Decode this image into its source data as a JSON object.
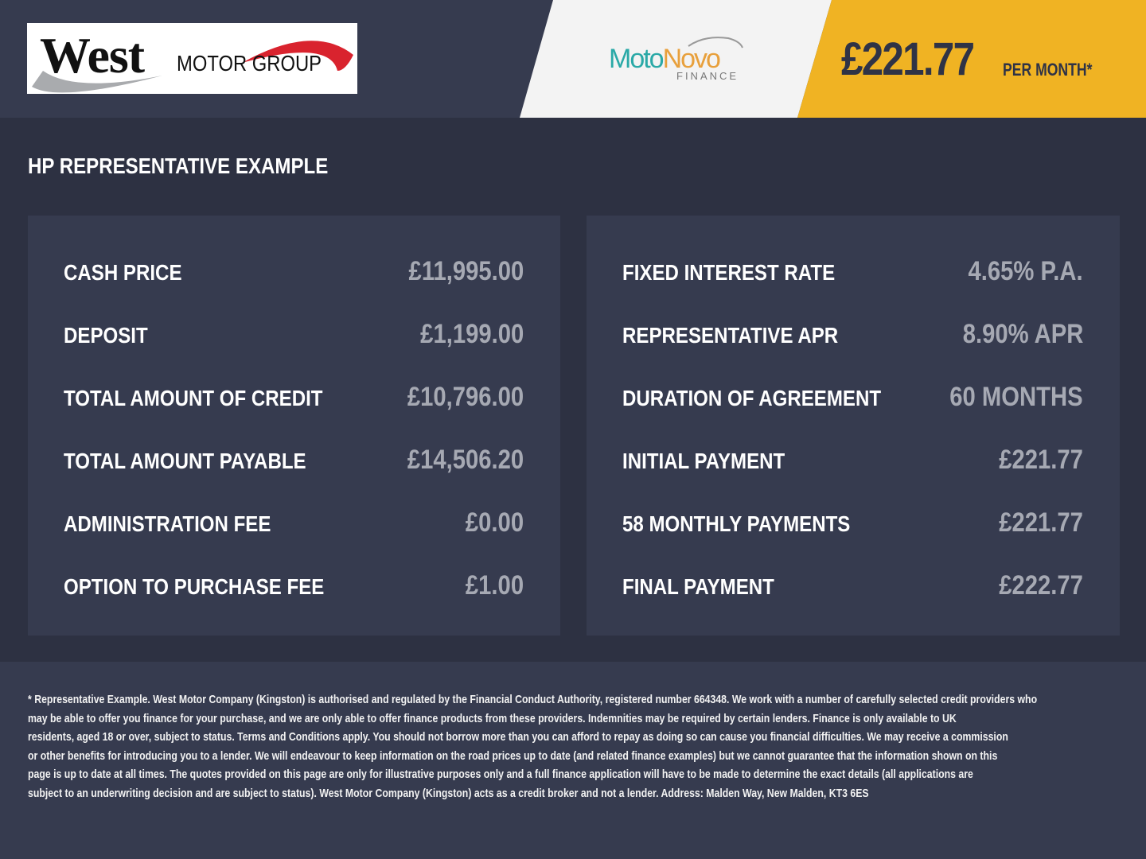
{
  "header": {
    "dealer_logo": "West MOTOR GROUP",
    "dealer_logo_main": "West",
    "dealer_logo_sub": "MOTOR GROUP",
    "finance_logo_moto": "Moto",
    "finance_logo_novo": "Novo",
    "finance_logo_sub": "FINANCE",
    "monthly_price": "£221.77",
    "per_month": "PER MONTH*"
  },
  "colors": {
    "accent_yellow": "#f0b323",
    "background": "#2d3142",
    "panel": "#363b4f",
    "moto_teal": "#2aa9a7",
    "novo_orange": "#e8a03c",
    "dealer_red": "#d9232e"
  },
  "section_title": "HP REPRESENTATIVE EXAMPLE",
  "left_panel": [
    {
      "label": "CASH PRICE",
      "value": "£11,995.00"
    },
    {
      "label": "DEPOSIT",
      "value": "£1,199.00"
    },
    {
      "label": "TOTAL AMOUNT OF CREDIT",
      "value": "£10,796.00"
    },
    {
      "label": "TOTAL AMOUNT PAYABLE",
      "value": "£14,506.20"
    },
    {
      "label": "ADMINISTRATION FEE",
      "value": "£0.00"
    },
    {
      "label": "OPTION TO PURCHASE FEE",
      "value": "£1.00"
    }
  ],
  "right_panel": [
    {
      "label": "FIXED INTEREST RATE",
      "value": "4.65% P.A."
    },
    {
      "label": "REPRESENTATIVE APR",
      "value": "8.90% APR"
    },
    {
      "label": "DURATION OF AGREEMENT",
      "value": "60 MONTHS"
    },
    {
      "label": "INITIAL PAYMENT",
      "value": "£221.77"
    },
    {
      "label": "58 MONTHLY PAYMENTS",
      "value": "£221.77"
    },
    {
      "label": "FINAL PAYMENT",
      "value": "£222.77"
    }
  ],
  "footer_lines": [
    "* Representative Example. West Motor Company (Kingston) is authorised and regulated by the Financial Conduct Authority, registered number 664348. We work with a number of carefully selected credit providers who",
    "may be able to offer you finance for your purchase, and we are only able to offer finance products from these providers. Indemnities may be required by certain lenders. Finance is only available to UK",
    "residents, aged 18 or over, subject to status. Terms and Conditions apply. You should not borrow more than you can afford to repay as doing so can cause you financial difficulties. We may receive a commission",
    "or other benefits for introducing you to a lender. We will endeavour to keep information on the road prices up to date (and related finance examples) but we cannot guarantee that the information shown on this",
    "page is up to date at all times. The quotes provided on this page are only for illustrative purposes only and a full finance application will have to be made to determine the exact details (all applications are",
    "subject to an underwriting decision and are subject to status). West Motor Company (Kingston) acts as a credit broker and not a lender. Address: Malden Way, New Malden, KT3 6ES"
  ]
}
